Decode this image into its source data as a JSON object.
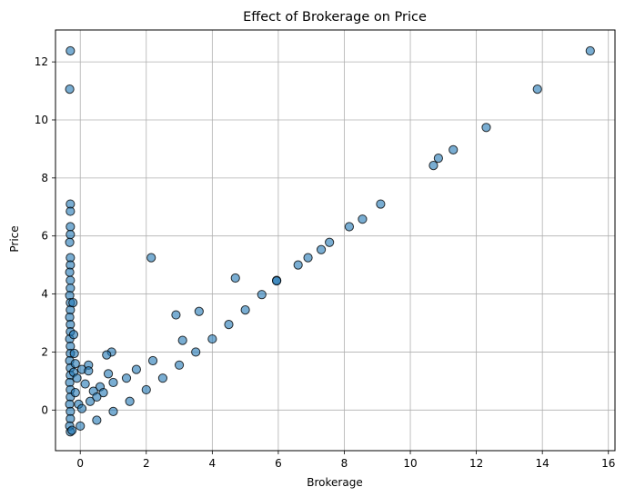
{
  "chart_data": {
    "type": "scatter",
    "title": "Effect of Brokerage on Price",
    "xlabel": "Brokerage",
    "ylabel": "Price",
    "xlim": [
      -0.75,
      16.2
    ],
    "ylim": [
      -1.4,
      13.1
    ],
    "xticks": [
      0,
      2,
      4,
      6,
      8,
      10,
      12,
      14,
      16
    ],
    "yticks": [
      0,
      2,
      4,
      6,
      8,
      10,
      12
    ],
    "grid": true,
    "marker_color": "#1f77b4",
    "marker_edge_color": "#000000",
    "marker_alpha": 0.6,
    "series": [
      {
        "points": [
          [
            15.45,
            12.38
          ],
          [
            13.85,
            11.06
          ],
          [
            12.3,
            9.74
          ],
          [
            11.3,
            8.97
          ],
          [
            10.85,
            8.68
          ],
          [
            10.7,
            8.43
          ],
          [
            9.1,
            7.1
          ],
          [
            8.55,
            6.58
          ],
          [
            8.15,
            6.32
          ],
          [
            7.55,
            5.78
          ],
          [
            7.3,
            5.53
          ],
          [
            6.9,
            5.25
          ],
          [
            6.6,
            5.0
          ],
          [
            5.95,
            4.47
          ],
          [
            -0.3,
            12.38
          ],
          [
            -0.32,
            11.06
          ],
          [
            -0.3,
            7.1
          ],
          [
            -0.3,
            6.85
          ],
          [
            -0.3,
            6.32
          ],
          [
            -0.3,
            6.05
          ],
          [
            -0.32,
            5.78
          ],
          [
            -0.3,
            5.25
          ],
          [
            -0.3,
            5.0
          ],
          [
            -0.32,
            4.75
          ],
          [
            -0.3,
            4.47
          ],
          [
            -0.3,
            4.2
          ],
          [
            -0.32,
            3.95
          ],
          [
            -0.3,
            3.7
          ],
          [
            -0.3,
            3.45
          ],
          [
            -0.32,
            3.2
          ],
          [
            -0.3,
            2.95
          ],
          [
            -0.3,
            2.7
          ],
          [
            -0.32,
            2.45
          ],
          [
            -0.3,
            2.2
          ],
          [
            -0.3,
            1.95
          ],
          [
            -0.32,
            1.7
          ],
          [
            -0.3,
            1.45
          ],
          [
            -0.3,
            1.2
          ],
          [
            -0.32,
            0.95
          ],
          [
            -0.3,
            0.7
          ],
          [
            -0.3,
            0.45
          ],
          [
            -0.32,
            0.2
          ],
          [
            -0.3,
            -0.05
          ],
          [
            -0.3,
            -0.3
          ],
          [
            -0.32,
            -0.55
          ],
          [
            -0.3,
            -0.75
          ],
          [
            -0.22,
            3.7
          ],
          [
            -0.2,
            2.6
          ],
          [
            -0.18,
            1.95
          ],
          [
            -0.15,
            1.6
          ],
          [
            -0.2,
            1.3
          ],
          [
            -0.1,
            1.1
          ],
          [
            -0.15,
            0.6
          ],
          [
            -0.05,
            0.2
          ],
          [
            2.15,
            5.25
          ],
          [
            4.7,
            4.55
          ],
          [
            3.6,
            3.4
          ],
          [
            2.9,
            3.28
          ],
          [
            3.1,
            2.4
          ],
          [
            2.2,
            1.7
          ],
          [
            0.95,
            2.0
          ],
          [
            0.8,
            1.9
          ],
          [
            0.25,
            1.55
          ],
          [
            0.05,
            1.4
          ],
          [
            0.25,
            1.35
          ],
          [
            0.85,
            1.25
          ],
          [
            1.7,
            1.4
          ],
          [
            1.4,
            1.1
          ],
          [
            0.6,
            0.8
          ],
          [
            0.4,
            0.65
          ],
          [
            0.15,
            0.9
          ],
          [
            0.7,
            0.6
          ],
          [
            1.0,
            0.95
          ],
          [
            0.3,
            0.3
          ],
          [
            0.5,
            0.45
          ],
          [
            0.05,
            0.05
          ],
          [
            -0.25,
            -0.7
          ],
          [
            0.0,
            -0.55
          ],
          [
            0.5,
            -0.35
          ],
          [
            1.0,
            -0.05
          ],
          [
            1.5,
            0.3
          ],
          [
            2.0,
            0.7
          ],
          [
            2.5,
            1.1
          ],
          [
            3.0,
            1.55
          ],
          [
            3.5,
            2.0
          ],
          [
            4.0,
            2.45
          ],
          [
            4.5,
            2.95
          ],
          [
            5.0,
            3.45
          ],
          [
            5.5,
            3.98
          ],
          [
            5.95,
            4.45
          ]
        ]
      }
    ]
  }
}
